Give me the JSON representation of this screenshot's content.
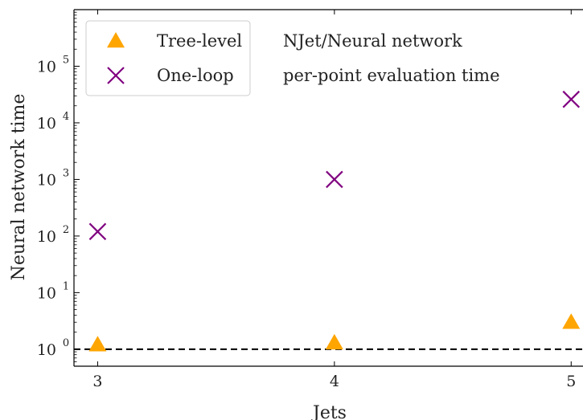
{
  "chart_data": {
    "type": "scatter",
    "title": "",
    "xlabel": "Jets",
    "ylabel": "Neural network time",
    "yscale": "log",
    "xlim": [
      2.9,
      5.05
    ],
    "ylim_log10": [
      -0.3,
      6.0
    ],
    "x_ticks": [
      3,
      4,
      5
    ],
    "x_tick_labels": [
      "3",
      "4",
      "5"
    ],
    "y_ticks_log10": [
      0,
      1,
      2,
      3,
      4,
      5
    ],
    "y_tick_labels": [
      {
        "base": "10",
        "exp": "0"
      },
      {
        "base": "10",
        "exp": "1"
      },
      {
        "base": "10",
        "exp": "2"
      },
      {
        "base": "10",
        "exp": "3"
      },
      {
        "base": "10",
        "exp": "4"
      },
      {
        "base": "10",
        "exp": "5"
      }
    ],
    "grid": false,
    "legend_position": "top-left",
    "annotation": [
      "NJet/Neural network",
      "per-point evaluation time"
    ],
    "reference_line": {
      "y": 1,
      "style": "dashed",
      "color": "#000000"
    },
    "series": [
      {
        "name": "Tree-level",
        "marker": "triangle",
        "color": "#FFA500",
        "x": [
          3,
          4,
          5
        ],
        "y": [
          1.2,
          1.3,
          3.0
        ]
      },
      {
        "name": "One-loop",
        "marker": "x",
        "color": "#800080",
        "x": [
          3,
          4,
          5
        ],
        "y": [
          120,
          1000,
          26000
        ]
      }
    ]
  }
}
